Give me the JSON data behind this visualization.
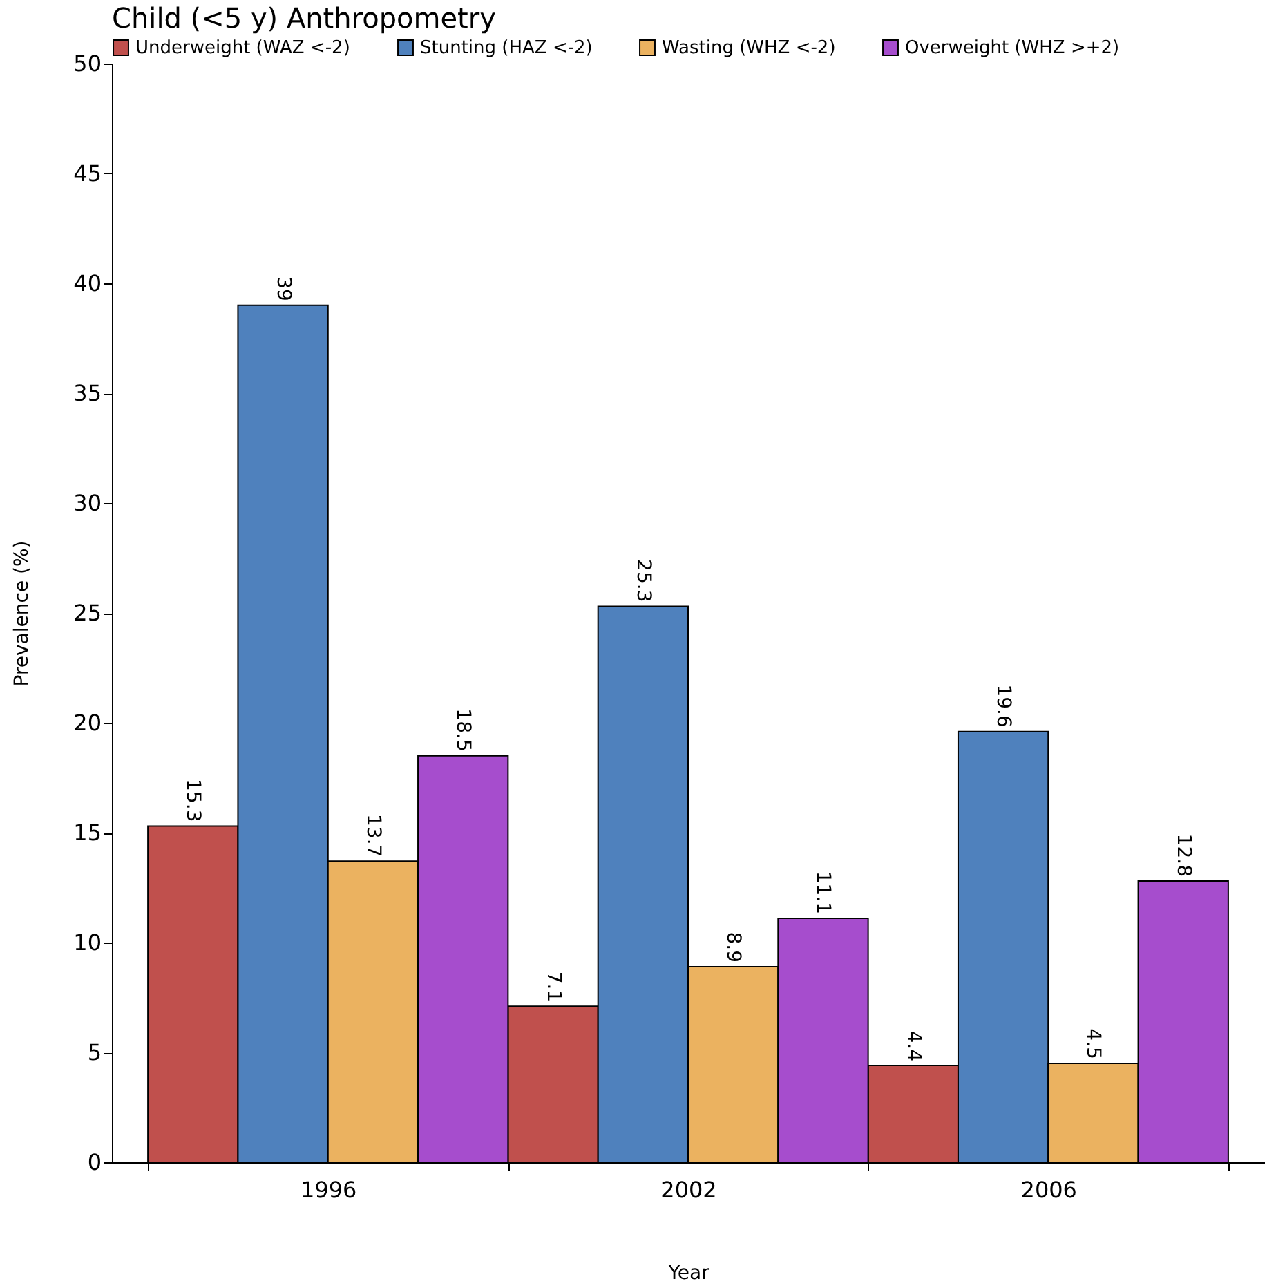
{
  "chart_data": {
    "type": "bar",
    "title": "Child (<5 y) Anthropometry",
    "xlabel": "Year",
    "ylabel": "Prevalence (%)",
    "categories": [
      "1996",
      "2002",
      "2006"
    ],
    "series": [
      {
        "name": "Underweight (WAZ <-2)",
        "color": "#c0504d",
        "values": [
          15.3,
          7.1,
          4.4
        ]
      },
      {
        "name": "Stunting (HAZ <-2)",
        "color": "#4f81bd",
        "values": [
          39,
          25.3,
          19.6
        ]
      },
      {
        "name": "Wasting (WHZ <-2)",
        "color": "#ebb260",
        "values": [
          13.7,
          8.9,
          4.5
        ]
      },
      {
        "name": "Overweight (WHZ >+2)",
        "color": "#a64dcd",
        "values": [
          18.5,
          11.1,
          12.8
        ]
      }
    ],
    "ylim": [
      0,
      50
    ],
    "yticks": [
      0,
      5,
      10,
      15,
      20,
      25,
      30,
      35,
      40,
      45,
      50
    ],
    "grid": false,
    "legend": "top",
    "data_labels": true
  }
}
